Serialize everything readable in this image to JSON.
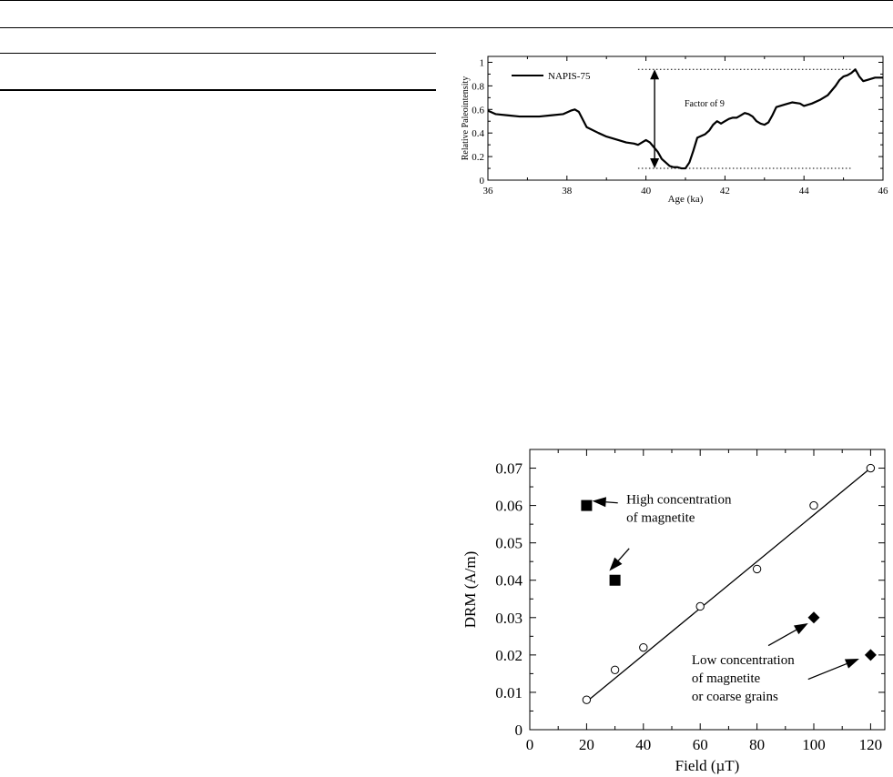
{
  "chart_data": [
    {
      "type": "line",
      "xlabel": "Age (ka)",
      "ylabel": "Relative Paleointensity",
      "xlim": [
        36,
        46
      ],
      "ylim": [
        0,
        1.05
      ],
      "xticks": [
        36,
        38,
        40,
        42,
        44,
        46
      ],
      "yticks": [
        0,
        0.2,
        0.4,
        0.6,
        0.8,
        1
      ],
      "xtick_labels": [
        "36",
        "38",
        "40",
        "42",
        "44",
        "46"
      ],
      "ytick_labels": [
        "0",
        "0.2",
        "0.4",
        "0.6",
        "0.8",
        "1"
      ],
      "legend_position": "top-left",
      "series": [
        {
          "name": "NAPIS-75",
          "x": [
            36.0,
            36.2,
            36.5,
            36.8,
            37.0,
            37.3,
            37.6,
            37.9,
            38.1,
            38.2,
            38.3,
            38.5,
            38.8,
            39.0,
            39.3,
            39.5,
            39.7,
            39.8,
            39.9,
            40.0,
            40.1,
            40.2,
            40.3,
            40.4,
            40.5,
            40.6,
            40.7,
            40.8,
            40.9,
            41.0,
            41.1,
            41.2,
            41.3,
            41.5,
            41.6,
            41.7,
            41.8,
            41.9,
            42.0,
            42.1,
            42.2,
            42.3,
            42.4,
            42.5,
            42.6,
            42.7,
            42.8,
            42.9,
            43.0,
            43.1,
            43.2,
            43.3,
            43.5,
            43.7,
            43.9,
            44.0,
            44.2,
            44.4,
            44.6,
            44.8,
            44.9,
            45.0,
            45.1,
            45.2,
            45.3,
            45.4,
            45.5,
            45.6,
            45.8,
            46.0
          ],
          "y": [
            0.59,
            0.56,
            0.55,
            0.54,
            0.54,
            0.54,
            0.55,
            0.56,
            0.59,
            0.6,
            0.58,
            0.45,
            0.4,
            0.37,
            0.34,
            0.32,
            0.31,
            0.3,
            0.32,
            0.34,
            0.32,
            0.28,
            0.24,
            0.18,
            0.15,
            0.12,
            0.11,
            0.11,
            0.1,
            0.1,
            0.15,
            0.25,
            0.36,
            0.39,
            0.42,
            0.47,
            0.5,
            0.48,
            0.5,
            0.52,
            0.53,
            0.53,
            0.55,
            0.57,
            0.56,
            0.54,
            0.5,
            0.48,
            0.47,
            0.49,
            0.55,
            0.62,
            0.64,
            0.66,
            0.65,
            0.63,
            0.65,
            0.68,
            0.72,
            0.8,
            0.85,
            0.88,
            0.89,
            0.91,
            0.94,
            0.88,
            0.84,
            0.85,
            0.87,
            0.87
          ]
        }
      ],
      "annotations": [
        {
          "text": "Factor of 9",
          "arrow_x": 40.2,
          "y_from": 0.1,
          "y_to": 0.94
        },
        {
          "type": "dotted-line",
          "y": 0.94,
          "x_from": 39.8,
          "x_to": 45.2
        },
        {
          "type": "dotted-line",
          "y": 0.1,
          "x_from": 39.8,
          "x_to": 45.2
        }
      ]
    },
    {
      "type": "scatter",
      "xlabel": "Field (µT)",
      "ylabel": "DRM (A/m)",
      "xlim": [
        0,
        125
      ],
      "ylim": [
        0,
        0.075
      ],
      "xticks": [
        0,
        20,
        40,
        60,
        80,
        100,
        120
      ],
      "yticks": [
        0,
        0.01,
        0.02,
        0.03,
        0.04,
        0.05,
        0.06,
        0.07
      ],
      "xtick_labels": [
        "0",
        "20",
        "40",
        "60",
        "80",
        "100",
        "120"
      ],
      "ytick_labels": [
        "0",
        "0.01",
        "0.02",
        "0.03",
        "0.04",
        "0.05",
        "0.06",
        "0.07"
      ],
      "series": [
        {
          "marker": "open-circle",
          "x": [
            20,
            30,
            40,
            60,
            80,
            100,
            120
          ],
          "y": [
            0.008,
            0.016,
            0.022,
            0.033,
            0.043,
            0.06,
            0.07
          ]
        },
        {
          "marker": "filled-square",
          "x": [
            20,
            30
          ],
          "y": [
            0.06,
            0.04
          ]
        },
        {
          "marker": "filled-diamond",
          "x": [
            100,
            120
          ],
          "y": [
            0.03,
            0.02
          ]
        }
      ],
      "fit_line": {
        "x": [
          20,
          120
        ],
        "y": [
          0.0075,
          0.07
        ]
      },
      "annotations": [
        {
          "lines": [
            "High concentration",
            "of magnetite"
          ],
          "text_x": 34,
          "text_y": 0.0605,
          "arrows": [
            {
              "from": [
                31,
                0.0607
              ],
              "to": [
                22,
                0.0612
              ]
            },
            {
              "from": [
                35,
                0.0485
              ],
              "to": [
                28,
                0.0425
              ]
            }
          ]
        },
        {
          "lines": [
            "Low concentration",
            "of magnetite",
            "or coarse grains"
          ],
          "text_x": 57,
          "text_y": 0.0175,
          "arrows": [
            {
              "from": [
                84,
                0.0225
              ],
              "to": [
                98,
                0.0285
              ]
            },
            {
              "from": [
                98,
                0.0135
              ],
              "to": [
                116,
                0.019
              ]
            }
          ]
        }
      ]
    }
  ]
}
